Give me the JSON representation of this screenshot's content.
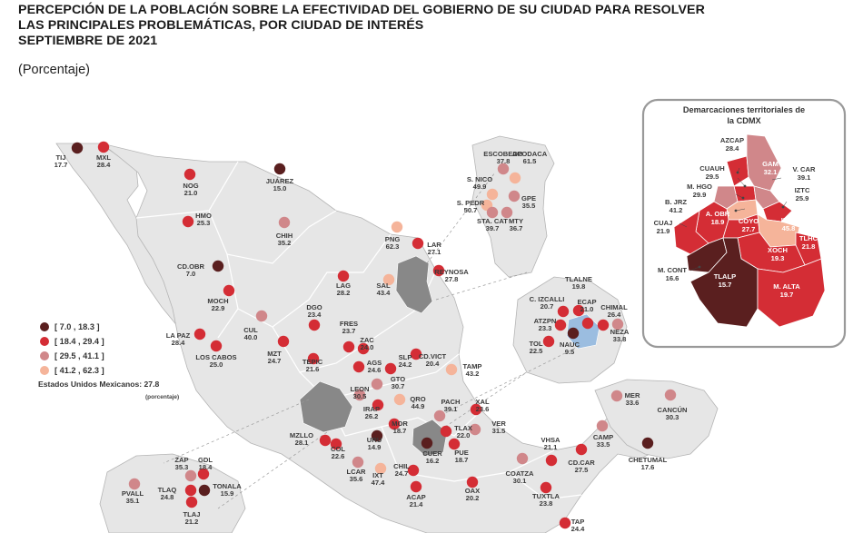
{
  "header": {
    "title_lines": [
      "PERCEPCIÓN DE LA POBLACIÓN SOBRE LA EFECTIVIDAD DEL GOBIERNO DE SU CIUDAD PARA RESOLVER",
      "LAS PRINCIPALES PROBLEMÁTICAS, POR CIUDAD DE INTERÉS",
      "SEPTIEMBRE DE 2021"
    ],
    "subtitle": "(Porcentaje)"
  },
  "legend": {
    "items": [
      {
        "label": "[  7.0 , 18.3 ]",
        "color": "#5a1f1f"
      },
      {
        "label": "[ 18.4 , 29.4 ]",
        "color": "#d42d35"
      },
      {
        "label": "[ 29.5 , 41.1 ]",
        "color": "#d0878a"
      },
      {
        "label": "[ 41.2 , 62.3 ]",
        "color": "#f5b49a"
      }
    ]
  },
  "national": {
    "label": "Estados Unidos Mexicanos:  27.8",
    "unit": "(porcentaje)"
  },
  "inset": {
    "title_line1": "Demarcaciones territoriales de",
    "title_line2": "la CDMX"
  },
  "cities": [
    {
      "name": "TIJ",
      "value": "17.7"
    },
    {
      "name": "MXL",
      "value": "28.4"
    },
    {
      "name": "NOG",
      "value": "21.0"
    },
    {
      "name": "JUÁREZ",
      "value": "15.0"
    },
    {
      "name": "HMO",
      "value": "25.3"
    },
    {
      "name": "CHIH",
      "value": "35.2"
    },
    {
      "name": "CD.OBR",
      "value": "7.0"
    },
    {
      "name": "MOCH",
      "value": "22.9"
    },
    {
      "name": "LA PAZ",
      "value": "28.4"
    },
    {
      "name": "LOS CABOS",
      "value": "25.0"
    },
    {
      "name": "CUL",
      "value": "40.0"
    },
    {
      "name": "MZT",
      "value": "24.7"
    },
    {
      "name": "DGO",
      "value": "23.4"
    },
    {
      "name": "LAG",
      "value": "28.2"
    },
    {
      "name": "SAL",
      "value": "43.4"
    },
    {
      "name": "PNG",
      "value": "62.3"
    },
    {
      "name": "LAR",
      "value": "27.1"
    },
    {
      "name": "REYNOSA",
      "value": "27.8"
    },
    {
      "name": "ESCOBEDO",
      "value": "37.8"
    },
    {
      "name": "S. NICO",
      "value": "49.9"
    },
    {
      "name": "APODACA",
      "value": "61.5"
    },
    {
      "name": "S. PEDR",
      "value": "50.7"
    },
    {
      "name": "GPE",
      "value": "35.5"
    },
    {
      "name": "STA. CAT",
      "value": "39.7"
    },
    {
      "name": "MTY",
      "value": "36.7"
    },
    {
      "name": "TEPIC",
      "value": "21.6"
    },
    {
      "name": "FRES",
      "value": "23.7"
    },
    {
      "name": "ZAC",
      "value": "24.0"
    },
    {
      "name": "AGS",
      "value": "24.6"
    },
    {
      "name": "SLP",
      "value": "24.2"
    },
    {
      "name": "CD.VICT",
      "value": "20.4"
    },
    {
      "name": "TAMP",
      "value": "43.2"
    },
    {
      "name": "LEON",
      "value": "30.5"
    },
    {
      "name": "GTO",
      "value": "30.7"
    },
    {
      "name": "IRAP",
      "value": "26.2"
    },
    {
      "name": "QRO",
      "value": "44.9"
    },
    {
      "name": "PACH",
      "value": "39.1"
    },
    {
      "name": "XAL",
      "value": "23.6"
    },
    {
      "name": "MZLLO",
      "value": "28.1"
    },
    {
      "name": "COL",
      "value": "22.6"
    },
    {
      "name": "MOR",
      "value": "18.7"
    },
    {
      "name": "URU",
      "value": "14.9"
    },
    {
      "name": "TLAX",
      "value": "22.0"
    },
    {
      "name": "VER",
      "value": "31.5"
    },
    {
      "name": "CUER",
      "value": "16.2"
    },
    {
      "name": "PUE",
      "value": "18.7"
    },
    {
      "name": "LCAR",
      "value": "35.6"
    },
    {
      "name": "IXT",
      "value": "47.4"
    },
    {
      "name": "CHIL",
      "value": "24.7"
    },
    {
      "name": "ACAP",
      "value": "21.4"
    },
    {
      "name": "OAX",
      "value": "20.2"
    },
    {
      "name": "COATZA",
      "value": "30.1"
    },
    {
      "name": "VHSA",
      "value": "21.1"
    },
    {
      "name": "CAMP",
      "value": "33.5"
    },
    {
      "name": "CD.CAR",
      "value": "27.5"
    },
    {
      "name": "TUXTLA",
      "value": "23.8"
    },
    {
      "name": "TAP",
      "value": "24.4"
    },
    {
      "name": "MER",
      "value": "33.6"
    },
    {
      "name": "CANCÚN",
      "value": "30.3"
    },
    {
      "name": "CHETUMAL",
      "value": "17.6"
    },
    {
      "name": "PVALL",
      "value": "35.1"
    },
    {
      "name": "ZAP",
      "value": "35.3"
    },
    {
      "name": "GDL",
      "value": "18.4"
    },
    {
      "name": "TONALA",
      "value": "15.9"
    },
    {
      "name": "TLAQ",
      "value": "24.8"
    },
    {
      "name": "TLAJ",
      "value": "21.2"
    },
    {
      "name": "TLALNE",
      "value": "19.8"
    },
    {
      "name": "C. IZCALLI",
      "value": "20.7"
    },
    {
      "name": "ATZPN",
      "value": "23.3"
    },
    {
      "name": "ECAP",
      "value": "21.0"
    },
    {
      "name": "CHIMAL",
      "value": "26.4"
    },
    {
      "name": "NEZA",
      "value": "33.8"
    },
    {
      "name": "TOL",
      "value": "22.5"
    },
    {
      "name": "NAUC",
      "value": "9.5"
    }
  ],
  "cdmx": [
    {
      "name": "AZCAP",
      "value": "28.4"
    },
    {
      "name": "CUAUH",
      "value": "29.5"
    },
    {
      "name": "GAM",
      "value": "32.1"
    },
    {
      "name": "V. CAR",
      "value": "39.1"
    },
    {
      "name": "M. HGO",
      "value": "29.9"
    },
    {
      "name": "IZTC",
      "value": "25.9"
    },
    {
      "name": "B. JRZ",
      "value": "41.2"
    },
    {
      "name": "A. OBR",
      "value": "18.9"
    },
    {
      "name": "COYO",
      "value": "27.7"
    },
    {
      "name": "IZTP",
      "value": "45.8"
    },
    {
      "name": "CUAJ",
      "value": "21.9"
    },
    {
      "name": "TLHC",
      "value": "21.8"
    },
    {
      "name": "XOCH",
      "value": "19.3"
    },
    {
      "name": "M. CONT",
      "value": "16.6"
    },
    {
      "name": "TLALP",
      "value": "15.7"
    },
    {
      "name": "M. ALTA",
      "value": "19.7"
    }
  ]
}
